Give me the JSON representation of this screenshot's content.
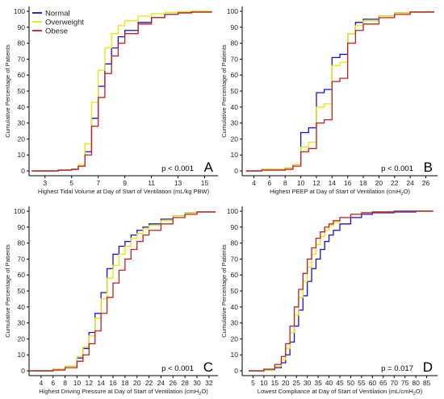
{
  "chart_data": [
    {
      "panel": "A",
      "type": "line",
      "p_value": "p < 0.001",
      "xlabel": "Highest Tidal Volume at Day of Start of Ventilation (mL/kg PBW)",
      "ylabel": "Cumulative Percentage of Patients",
      "xlim": [
        1.8,
        16
      ],
      "ylim": [
        -3,
        103
      ],
      "xticks": [
        3,
        5,
        7,
        9,
        11,
        13,
        15
      ],
      "yticks": [
        0,
        10,
        20,
        30,
        40,
        50,
        60,
        70,
        80,
        90,
        100
      ],
      "legend": {
        "position": "top-left",
        "entries": [
          "Normal",
          "Overweight",
          "Obese"
        ]
      },
      "series": [
        {
          "name": "Normal",
          "color": "#1010dd",
          "x": [
            2,
            3,
            4,
            5,
            5.5,
            6,
            6.5,
            7,
            7.5,
            8,
            8.5,
            9,
            10,
            11,
            12,
            13,
            14,
            15.5
          ],
          "y": [
            0,
            0,
            0.5,
            1,
            3,
            12,
            33,
            53,
            67,
            77,
            84,
            88,
            93,
            96,
            98,
            99,
            99.5,
            100
          ]
        },
        {
          "name": "Overweight",
          "color": "#e8e800",
          "x": [
            2,
            3,
            4,
            5,
            5.5,
            6,
            6.5,
            7,
            7.5,
            8,
            8.5,
            9,
            10,
            11,
            12,
            13,
            14,
            15.5
          ],
          "y": [
            0,
            0,
            0.5,
            1,
            4,
            17,
            43,
            63,
            77,
            86,
            91,
            94,
            97,
            98.5,
            99.3,
            99.7,
            100,
            100
          ]
        },
        {
          "name": "Obese",
          "color": "#c02020",
          "x": [
            2,
            3,
            4,
            5,
            5.5,
            6,
            6.5,
            7,
            7.5,
            8,
            8.5,
            9,
            10,
            11,
            12,
            13,
            14,
            15.5
          ],
          "y": [
            0,
            0,
            0.5,
            1,
            3,
            10,
            28,
            46,
            61,
            72,
            80,
            86,
            92,
            96,
            98,
            99,
            99.5,
            100
          ]
        }
      ]
    },
    {
      "panel": "B",
      "type": "line",
      "p_value": "p < 0.001",
      "xlabel": "Highest PEEP at Day of Start of Ventilation (cmH",
      "xlabel_sub": "2",
      "xlabel_end": "O)",
      "ylabel": "Cumulative Percentage of Patients",
      "xlim": [
        2.5,
        27.5
      ],
      "ylim": [
        -3,
        103
      ],
      "xticks": [
        4,
        6,
        8,
        10,
        12,
        14,
        16,
        18,
        20,
        22,
        24,
        26
      ],
      "yticks": [
        0,
        10,
        20,
        30,
        40,
        50,
        60,
        70,
        80,
        90,
        100
      ],
      "series": [
        {
          "name": "Normal",
          "color": "#1010dd",
          "x": [
            3,
            5,
            8,
            9,
            10,
            11,
            12,
            13,
            14,
            15,
            16,
            17,
            18,
            20,
            22,
            24,
            27
          ],
          "y": [
            0,
            1,
            2,
            4,
            24,
            27,
            49,
            51,
            71,
            73,
            86,
            93,
            95,
            97,
            99,
            99.5,
            100
          ]
        },
        {
          "name": "Overweight",
          "color": "#e8e800",
          "x": [
            3,
            5,
            8,
            9,
            10,
            11,
            12,
            13,
            14,
            15,
            16,
            17,
            18,
            20,
            22,
            24,
            27
          ],
          "y": [
            0,
            1,
            2,
            4,
            15,
            18,
            40,
            42,
            66,
            68,
            86,
            91,
            94,
            97,
            99,
            99.5,
            100
          ]
        },
        {
          "name": "Obese",
          "color": "#c02020",
          "x": [
            3,
            5,
            8,
            9,
            10,
            11,
            12,
            13,
            14,
            15,
            16,
            17,
            18,
            20,
            22,
            24,
            27
          ],
          "y": [
            0,
            0.5,
            1,
            3,
            12,
            14,
            30,
            32,
            56,
            58,
            80,
            88,
            92,
            96,
            98,
            99.5,
            100
          ]
        }
      ]
    },
    {
      "panel": "C",
      "type": "line",
      "p_value": "p < 0.001",
      "xlabel": "Highest Driving Pressure at Day of Start of Ventilation (cmH",
      "xlabel_sub": "2",
      "xlabel_end": "O)",
      "ylabel": "Cumulative Percentage of Patients",
      "xlim": [
        2,
        33.5
      ],
      "ylim": [
        -3,
        103
      ],
      "xticks": [
        4,
        6,
        8,
        10,
        12,
        14,
        16,
        18,
        20,
        22,
        24,
        26,
        28,
        30,
        32
      ],
      "yticks": [
        0,
        10,
        20,
        30,
        40,
        50,
        60,
        70,
        80,
        90,
        100
      ],
      "series": [
        {
          "name": "Normal",
          "color": "#1010dd",
          "x": [
            2,
            6,
            8,
            10,
            11,
            12,
            13,
            14,
            15,
            16,
            17,
            18,
            19,
            20,
            21,
            22,
            24,
            26,
            28,
            30,
            33
          ],
          "y": [
            0,
            1,
            3,
            8,
            14,
            24,
            36,
            49,
            64,
            73,
            78,
            81,
            85,
            88,
            90,
            92,
            95,
            97,
            99,
            99.5,
            100
          ]
        },
        {
          "name": "Overweight",
          "color": "#e8e800",
          "x": [
            2,
            6,
            8,
            10,
            11,
            12,
            13,
            14,
            15,
            16,
            17,
            18,
            19,
            20,
            21,
            22,
            24,
            26,
            28,
            30,
            33
          ],
          "y": [
            0,
            1,
            3,
            9,
            15,
            22,
            33,
            45,
            58,
            66,
            73,
            78,
            83,
            86,
            89,
            91,
            94,
            97,
            99,
            99.5,
            100
          ]
        },
        {
          "name": "Obese",
          "color": "#c02020",
          "x": [
            2,
            6,
            8,
            10,
            11,
            12,
            13,
            14,
            15,
            16,
            17,
            18,
            19,
            20,
            21,
            22,
            24,
            26,
            28,
            30,
            33
          ],
          "y": [
            0,
            0.5,
            2,
            6,
            10,
            17,
            25,
            36,
            46,
            55,
            63,
            70,
            76,
            81,
            85,
            88,
            92,
            96,
            98,
            99.5,
            100
          ]
        }
      ]
    },
    {
      "panel": "D",
      "type": "line",
      "p_value": "p = 0.017",
      "xlabel": "Lowest Compliance at Day of Start of Ventilation (mL/cmH",
      "xlabel_sub": "2",
      "xlabel_end": "O)",
      "ylabel": "Cumulative Percentage of Patients",
      "xlim": [
        0,
        90
      ],
      "ylim": [
        -3,
        103
      ],
      "xticks": [
        5,
        10,
        15,
        20,
        25,
        30,
        35,
        40,
        45,
        50,
        55,
        60,
        65,
        70,
        75,
        80,
        85
      ],
      "yticks": [
        0,
        10,
        20,
        30,
        40,
        50,
        60,
        70,
        80,
        90,
        100
      ],
      "series": [
        {
          "name": "Normal",
          "color": "#1010dd",
          "x": [
            3,
            10,
            15,
            18,
            20,
            22,
            24,
            26,
            28,
            30,
            32,
            34,
            36,
            38,
            40,
            42,
            45,
            50,
            55,
            60,
            70,
            80,
            88
          ],
          "y": [
            0,
            0.5,
            2,
            5,
            10,
            18,
            28,
            38,
            47,
            56,
            64,
            70,
            76,
            81,
            85,
            88,
            92,
            96,
            98,
            99,
            99.5,
            100,
            100
          ]
        },
        {
          "name": "Overweight",
          "color": "#e8e800",
          "x": [
            3,
            10,
            15,
            18,
            20,
            22,
            24,
            26,
            28,
            30,
            32,
            34,
            36,
            38,
            40,
            42,
            45,
            50,
            55,
            60,
            70,
            80,
            88
          ],
          "y": [
            0,
            0.5,
            3,
            7,
            14,
            24,
            35,
            46,
            56,
            65,
            73,
            79,
            84,
            88,
            91,
            93,
            96,
            98,
            99,
            99.5,
            100,
            100,
            100
          ]
        },
        {
          "name": "Obese",
          "color": "#c02020",
          "x": [
            3,
            10,
            15,
            18,
            20,
            22,
            24,
            26,
            28,
            30,
            32,
            34,
            36,
            38,
            40,
            42,
            45,
            50,
            55,
            60,
            70,
            80,
            88
          ],
          "y": [
            0,
            1,
            4,
            9,
            17,
            28,
            40,
            51,
            61,
            70,
            77,
            83,
            87,
            90,
            92,
            94,
            96,
            98,
            99,
            99.5,
            100,
            100,
            100
          ]
        }
      ]
    }
  ]
}
